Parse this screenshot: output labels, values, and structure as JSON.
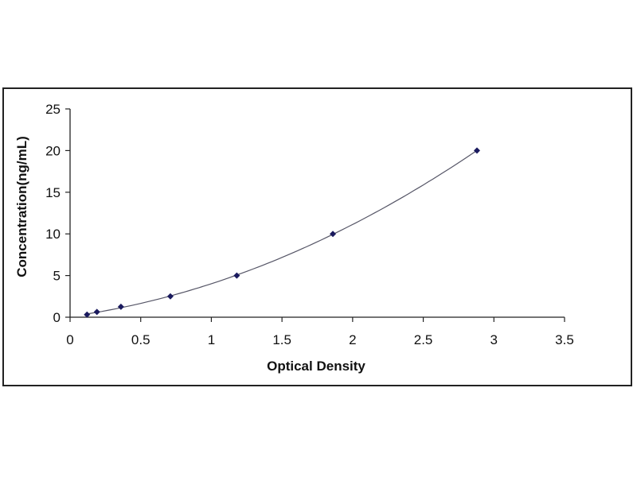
{
  "chart_data": {
    "type": "scatter",
    "title": "",
    "xlabel": "Optical Density",
    "ylabel": "Concentration(ng/mL)",
    "xlim": [
      0,
      3.5
    ],
    "ylim": [
      0,
      25
    ],
    "x_ticks": [
      "0",
      "0.5",
      "1",
      "1.5",
      "2",
      "2.5",
      "3",
      "3.5"
    ],
    "y_ticks": [
      "0",
      "5",
      "10",
      "15",
      "20",
      "25"
    ],
    "grid": false,
    "legend": "none",
    "series": [
      {
        "points": [
          {
            "x": 0.12,
            "y": 0.31
          },
          {
            "x": 0.19,
            "y": 0.63
          },
          {
            "x": 0.36,
            "y": 1.25
          },
          {
            "x": 0.71,
            "y": 2.5
          },
          {
            "x": 1.18,
            "y": 5
          },
          {
            "x": 1.86,
            "y": 10
          },
          {
            "x": 2.88,
            "y": 20
          }
        ],
        "color": "#1a1a5e",
        "fit_curve": true,
        "curve_color": "#555566"
      }
    ]
  }
}
